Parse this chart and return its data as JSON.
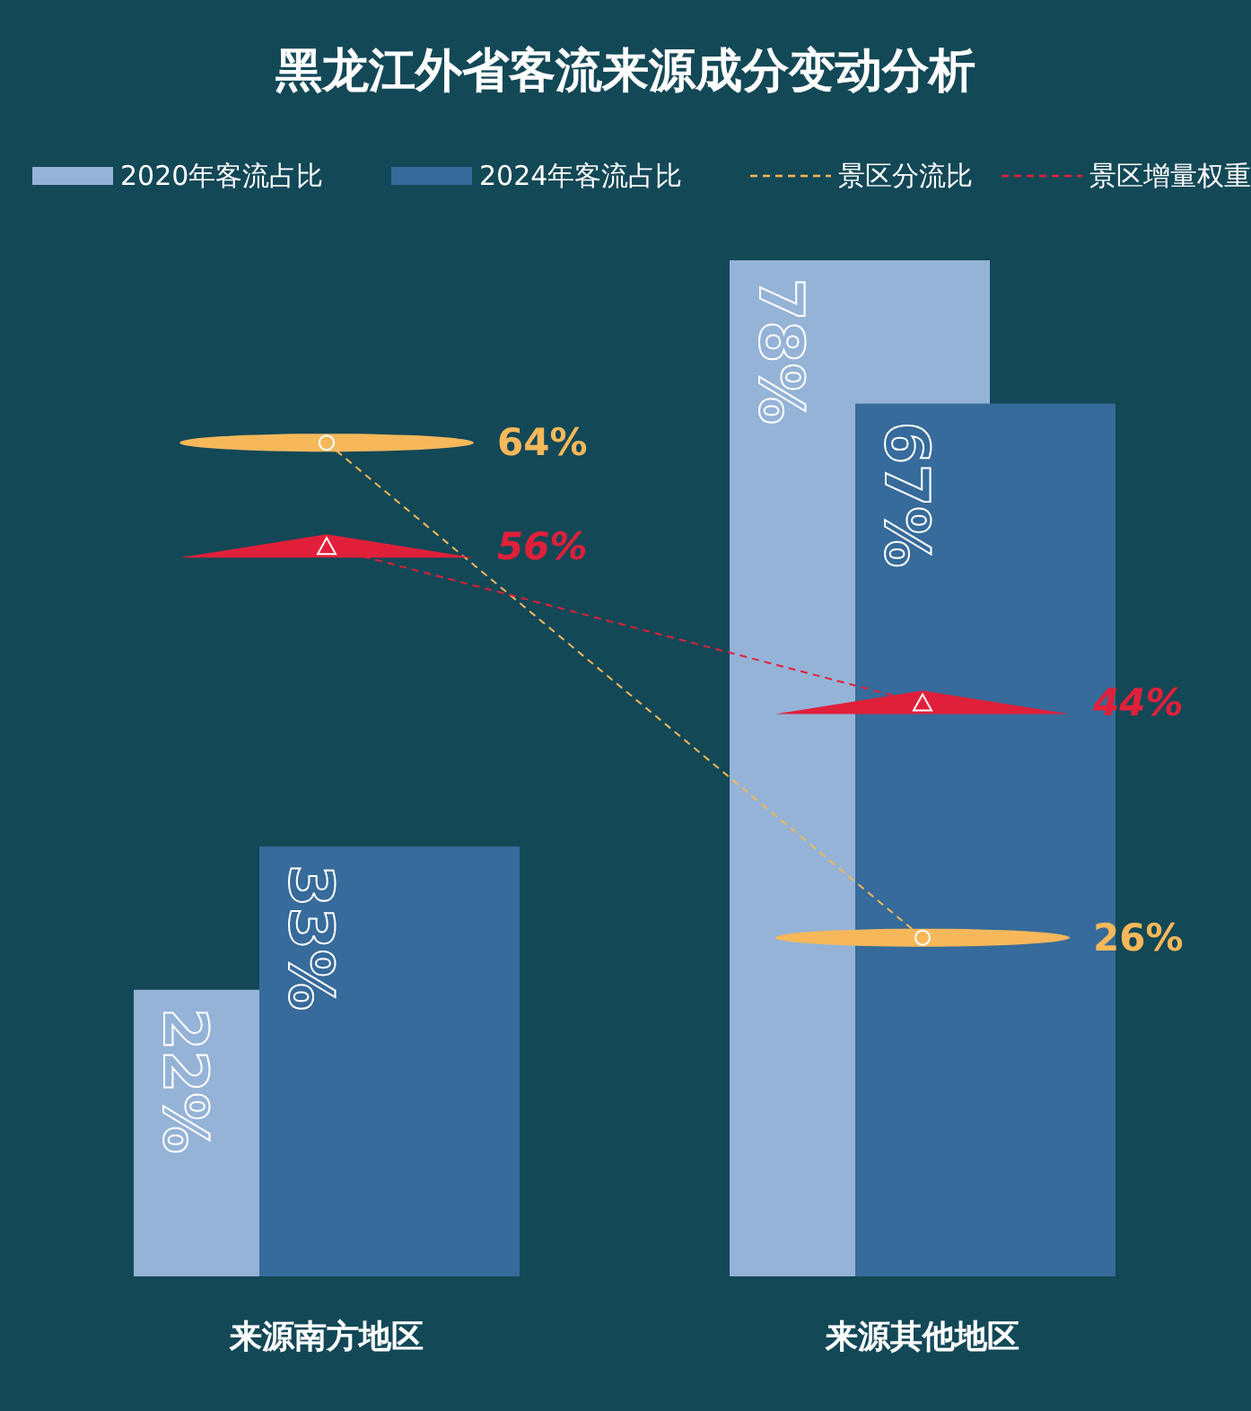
{
  "chart_data": {
    "type": "bar",
    "title": "黑龙江外省客流来源成分变动分析",
    "categories": [
      "来源南方地区",
      "来源其他地区"
    ],
    "series": [
      {
        "name": "2020年客流占比",
        "color": "#95b3d7",
        "values": [
          22,
          78
        ],
        "value_labels": [
          "22%",
          "78%"
        ]
      },
      {
        "name": "2024年客流占比",
        "color": "#366b9b",
        "values": [
          33,
          67
        ],
        "value_labels": [
          "33%",
          "67%"
        ]
      },
      {
        "name": "景区分流比",
        "type": "line",
        "color": "#f6b85a",
        "values": [
          64,
          26
        ],
        "value_labels": [
          "64%",
          "26%"
        ],
        "marker": "circle",
        "line_style": "dashed"
      },
      {
        "name": "景区增量权重",
        "type": "line",
        "color": "#e0203a",
        "values": [
          56,
          44
        ],
        "value_labels": [
          "56%",
          "44%"
        ],
        "marker": "triangle",
        "line_style": "dashed"
      }
    ],
    "legend": "top"
  }
}
